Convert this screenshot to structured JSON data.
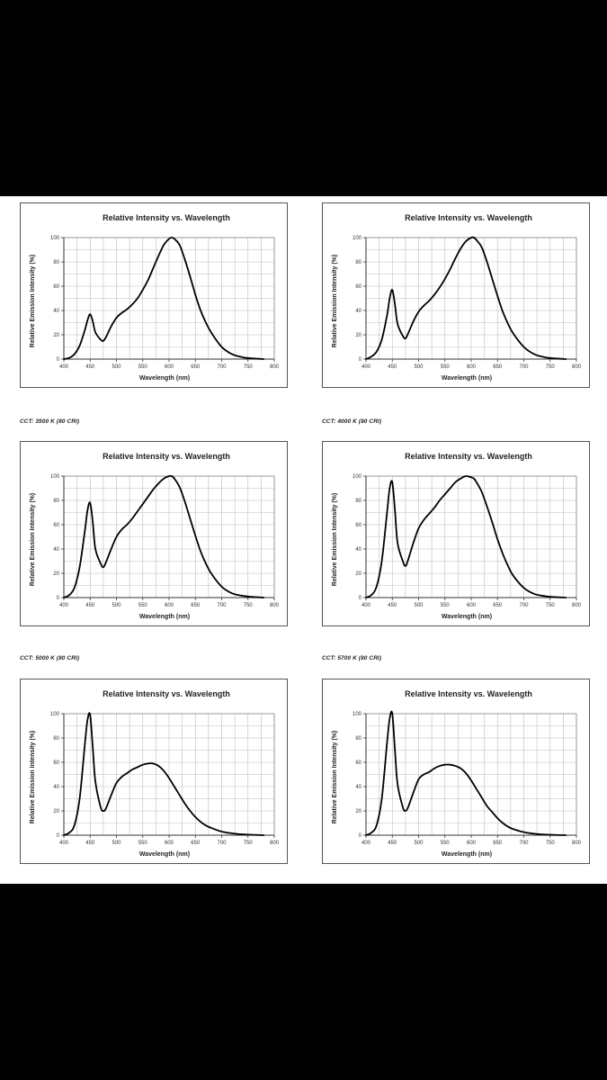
{
  "chart_data": [
    {
      "type": "line",
      "title": "Relative Intensity vs. Wavelength",
      "xlabel": "Wavelength (nm)",
      "ylabel": "Relative Emission Intensity (%)",
      "xlim": [
        400,
        800
      ],
      "ylim": [
        0,
        100
      ],
      "grid": true,
      "x_ticks": [
        400,
        450,
        500,
        550,
        600,
        650,
        700,
        750,
        800
      ],
      "y_ticks": [
        0,
        20,
        40,
        60,
        80,
        100
      ],
      "caption": "",
      "x": [
        400,
        410,
        420,
        430,
        440,
        445,
        450,
        455,
        460,
        470,
        475,
        480,
        490,
        500,
        510,
        520,
        530,
        540,
        550,
        560,
        570,
        580,
        590,
        600,
        605,
        610,
        620,
        630,
        640,
        650,
        660,
        670,
        680,
        700,
        720,
        740,
        760,
        780
      ],
      "y": [
        0,
        1,
        4,
        11,
        24,
        32,
        37,
        31,
        22,
        16,
        15,
        18,
        27,
        34,
        38,
        41,
        45,
        50,
        57,
        65,
        75,
        85,
        94,
        99,
        100,
        99,
        94,
        82,
        68,
        53,
        40,
        30,
        22,
        10,
        4,
        1.5,
        0.5,
        0
      ]
    },
    {
      "type": "line",
      "title": "Relative Intensity vs. Wavelength",
      "xlabel": "Wavelength (nm)",
      "ylabel": "Relative Emission Intensity (%)",
      "xlim": [
        400,
        800
      ],
      "ylim": [
        0,
        100
      ],
      "grid": true,
      "x_ticks": [
        400,
        450,
        500,
        550,
        600,
        650,
        700,
        750,
        800
      ],
      "y_ticks": [
        0,
        20,
        40,
        60,
        80,
        100
      ],
      "caption": "",
      "x": [
        400,
        410,
        420,
        430,
        440,
        445,
        450,
        455,
        460,
        470,
        475,
        480,
        490,
        500,
        510,
        520,
        530,
        540,
        550,
        560,
        570,
        580,
        590,
        600,
        605,
        610,
        620,
        630,
        640,
        650,
        660,
        670,
        680,
        700,
        720,
        740,
        760,
        780
      ],
      "y": [
        0,
        2,
        6,
        16,
        36,
        50,
        57,
        45,
        29,
        19,
        17,
        21,
        31,
        39,
        44,
        48,
        53,
        59,
        66,
        74,
        83,
        91,
        97,
        100,
        100,
        98,
        92,
        80,
        66,
        52,
        39,
        29,
        21,
        10,
        4,
        1.5,
        0.5,
        0
      ]
    },
    {
      "type": "line",
      "title": "Relative Intensity vs. Wavelength",
      "xlabel": "Wavelength (nm)",
      "ylabel": "Relative Emission Intensity (%)",
      "xlim": [
        400,
        800
      ],
      "ylim": [
        0,
        100
      ],
      "grid": true,
      "x_ticks": [
        400,
        450,
        500,
        550,
        600,
        650,
        700,
        750,
        800
      ],
      "y_ticks": [
        0,
        20,
        40,
        60,
        80,
        100
      ],
      "caption": "CCT: 3500 K (80 CRI)",
      "x": [
        400,
        410,
        420,
        430,
        440,
        445,
        450,
        455,
        460,
        470,
        475,
        480,
        490,
        500,
        510,
        520,
        530,
        540,
        550,
        560,
        570,
        580,
        590,
        600,
        605,
        610,
        620,
        630,
        640,
        650,
        660,
        670,
        680,
        700,
        720,
        740,
        760,
        780
      ],
      "y": [
        0,
        2,
        8,
        25,
        55,
        72,
        78,
        62,
        40,
        28,
        25,
        29,
        40,
        50,
        56,
        60,
        65,
        71,
        77,
        83,
        89,
        94,
        98,
        100,
        100,
        98,
        91,
        79,
        65,
        51,
        38,
        28,
        20,
        9,
        3.5,
        1.5,
        0.5,
        0
      ]
    },
    {
      "type": "line",
      "title": "Relative Intensity vs. Wavelength",
      "xlabel": "Wavelength (nm)",
      "ylabel": "Relative Emission Intensity (%)",
      "xlim": [
        400,
        800
      ],
      "ylim": [
        0,
        100
      ],
      "grid": true,
      "x_ticks": [
        400,
        450,
        500,
        550,
        600,
        650,
        700,
        750,
        800
      ],
      "y_ticks": [
        0,
        20,
        40,
        60,
        80,
        100
      ],
      "caption": "CCT: 4000 K (80 CRI)",
      "x": [
        400,
        410,
        420,
        430,
        440,
        445,
        450,
        455,
        460,
        470,
        475,
        480,
        490,
        500,
        510,
        520,
        530,
        540,
        550,
        560,
        570,
        580,
        590,
        600,
        605,
        610,
        620,
        630,
        640,
        650,
        660,
        670,
        680,
        700,
        720,
        740,
        760,
        780
      ],
      "y": [
        0,
        2,
        9,
        30,
        70,
        90,
        95,
        72,
        45,
        30,
        26,
        31,
        45,
        57,
        64,
        69,
        74,
        80,
        85,
        90,
        95,
        98,
        100,
        99,
        98,
        95,
        87,
        75,
        62,
        48,
        36,
        26,
        18,
        8,
        3,
        1.2,
        0.4,
        0
      ]
    },
    {
      "type": "line",
      "title": "Relative Intensity vs. Wavelength",
      "xlabel": "Wavelength (nm)",
      "ylabel": "Relative Emission Intensity (%)",
      "xlim": [
        400,
        800
      ],
      "ylim": [
        0,
        100
      ],
      "grid": true,
      "x_ticks": [
        400,
        450,
        500,
        550,
        600,
        650,
        700,
        750,
        800
      ],
      "y_ticks": [
        0,
        20,
        40,
        60,
        80,
        100
      ],
      "caption": "CCT: 5000 K (80 CRI)",
      "x": [
        400,
        410,
        420,
        430,
        440,
        445,
        450,
        455,
        460,
        470,
        475,
        480,
        490,
        500,
        510,
        520,
        530,
        540,
        550,
        560,
        570,
        580,
        590,
        600,
        610,
        620,
        630,
        640,
        650,
        660,
        670,
        680,
        700,
        720,
        740,
        760,
        780
      ],
      "y": [
        0,
        2,
        8,
        30,
        75,
        95,
        99,
        72,
        44,
        23,
        20,
        22,
        33,
        43,
        48,
        51,
        54,
        56,
        58,
        59,
        59,
        57,
        53,
        47,
        40,
        33,
        26,
        20,
        15,
        11,
        8,
        6,
        3,
        1.5,
        0.7,
        0.3,
        0
      ]
    },
    {
      "type": "line",
      "title": "Relative Intensity vs. Wavelength",
      "xlabel": "Wavelength (nm)",
      "ylabel": "Relative Emission Intensity (%)",
      "xlim": [
        400,
        800
      ],
      "ylim": [
        0,
        100
      ],
      "grid": true,
      "x_ticks": [
        400,
        450,
        500,
        550,
        600,
        650,
        700,
        750,
        800
      ],
      "y_ticks": [
        0,
        20,
        40,
        60,
        80,
        100
      ],
      "caption": "CCT: 5700 K (80 CRI)",
      "x": [
        400,
        410,
        420,
        430,
        440,
        445,
        450,
        455,
        460,
        470,
        475,
        480,
        490,
        500,
        510,
        520,
        530,
        540,
        550,
        560,
        570,
        580,
        590,
        600,
        610,
        620,
        630,
        640,
        650,
        660,
        670,
        680,
        700,
        720,
        740,
        760,
        780
      ],
      "y": [
        0,
        2,
        8,
        30,
        76,
        96,
        100,
        70,
        42,
        23,
        20,
        23,
        35,
        46,
        50,
        52,
        55,
        57,
        58,
        58,
        57,
        55,
        51,
        45,
        38,
        31,
        24,
        19,
        14,
        10,
        7,
        5,
        2.5,
        1.2,
        0.5,
        0.2,
        0
      ]
    }
  ]
}
